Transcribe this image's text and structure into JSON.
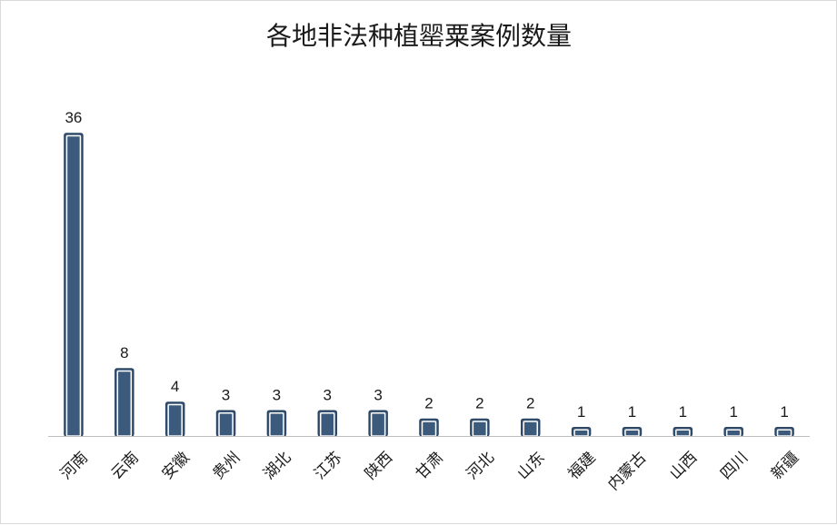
{
  "chart_data": {
    "type": "bar",
    "title": "各地非法种植罂粟案例数量",
    "categories": [
      "河南",
      "云南",
      "安徽",
      "贵州",
      "湖北",
      "江苏",
      "陕西",
      "甘肃",
      "河北",
      "山东",
      "福建",
      "内蒙古",
      "山西",
      "四川",
      "新疆"
    ],
    "values": [
      36,
      8,
      4,
      3,
      3,
      3,
      3,
      2,
      2,
      2,
      1,
      1,
      1,
      1,
      1
    ],
    "ylim": [
      0,
      36
    ],
    "grid": false,
    "legend": "none",
    "colors": {
      "bar_fill": "#3c5a7c",
      "bar_inner_stroke": "#ffffff",
      "bar_outer_stroke": "#2b4461",
      "axis": "#bfbfbf"
    }
  }
}
